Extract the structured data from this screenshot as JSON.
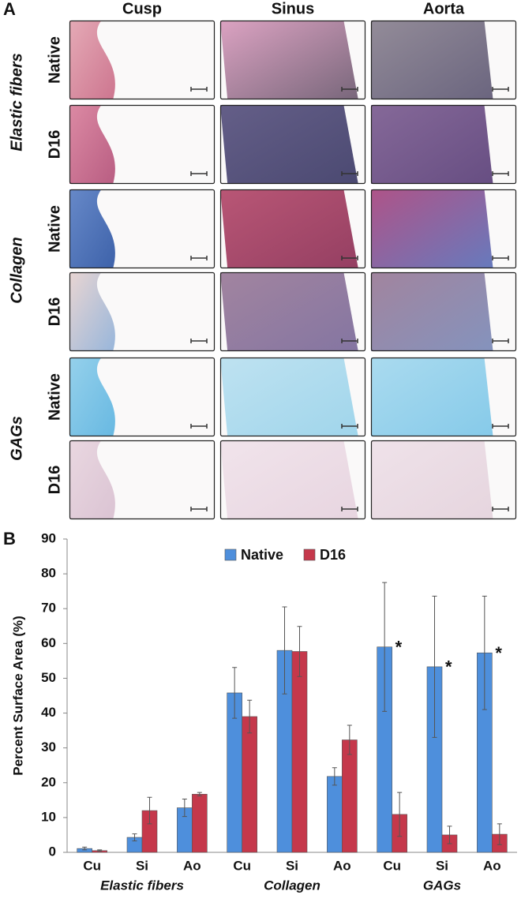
{
  "panel_a": {
    "label": "A",
    "columns": [
      "Cusp",
      "Sinus",
      "Aorta"
    ],
    "stains": [
      {
        "name": "Elastic fibers",
        "rows": [
          "Native",
          "D16"
        ]
      },
      {
        "name": "Collagen",
        "rows": [
          "Native",
          "D16"
        ]
      },
      {
        "name": "GAGs",
        "rows": [
          "Native",
          "D16"
        ]
      }
    ]
  },
  "chart_data": {
    "type": "bar",
    "label": "B",
    "y_label": "Percent Surface Area (%)",
    "categories": [
      "Cu",
      "Si",
      "Ao",
      "Cu",
      "Si",
      "Ao",
      "Cu",
      "Si",
      "Ao"
    ],
    "groups": [
      "Elastic fibers",
      "Collagen",
      "GAGs"
    ],
    "series": [
      {
        "name": "Native",
        "color": "#4e8fdc",
        "values": [
          1.1,
          4.3,
          12.8,
          45.8,
          58,
          21.8,
          59,
          53.3,
          57.3
        ],
        "errors": [
          0.4,
          1,
          2.5,
          7.3,
          12.5,
          2.5,
          18.5,
          20.3,
          16.3
        ],
        "significance": [
          null,
          null,
          null,
          null,
          null,
          null,
          "*",
          "*",
          "*"
        ]
      },
      {
        "name": "D16",
        "color": "#c5384b",
        "values": [
          0.5,
          12,
          16.7,
          39,
          57.7,
          32.3,
          10.9,
          5,
          5.2
        ],
        "errors": [
          0.2,
          3.8,
          0.5,
          4.7,
          7.2,
          4.2,
          6.3,
          2.5,
          3
        ]
      }
    ],
    "ylim": [
      0,
      90
    ],
    "yticks": [
      0,
      10,
      20,
      30,
      40,
      50,
      60,
      70,
      80,
      90
    ],
    "legend": "top",
    "grid": false
  }
}
